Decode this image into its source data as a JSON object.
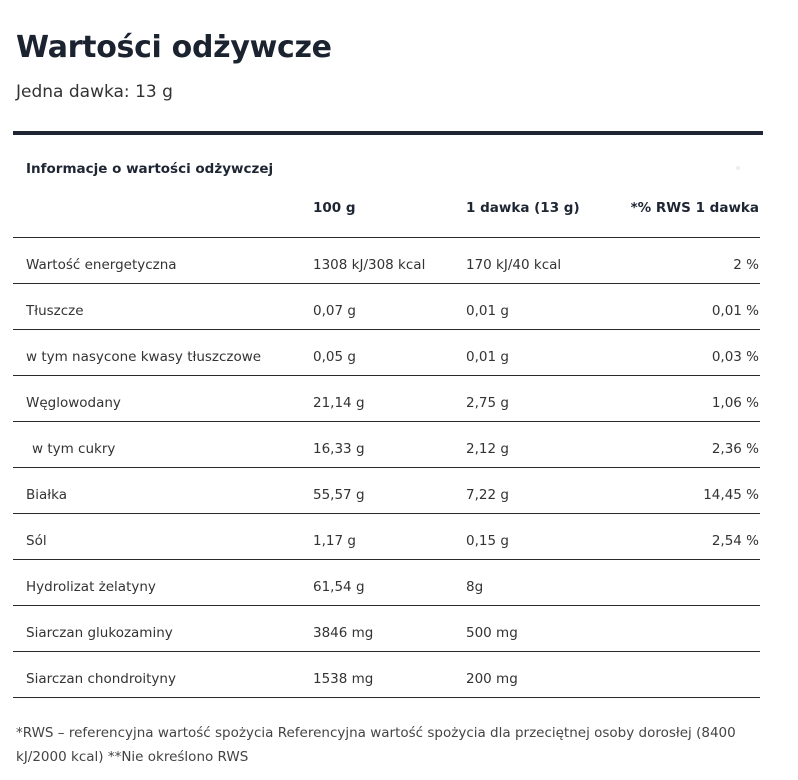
{
  "heading": {
    "title": "Wartości odżywcze",
    "serving": "Jedna dawka: 13 g"
  },
  "table": {
    "section_label": "Informacje o wartości odżywczej",
    "columns": [
      "",
      "100 g",
      "1 dawka (13 g)",
      "*% RWS 1 dawka"
    ],
    "rows": [
      {
        "name": "Wartość energetyczna",
        "per100": "1308 kJ/308 kcal",
        "perServing": "170 kJ/40 kcal",
        "rws": "2 %",
        "indent": false
      },
      {
        "name": "Tłuszcze",
        "per100": "0,07 g",
        "perServing": "0,01 g",
        "rws": "0,01 %",
        "indent": false
      },
      {
        "name": "w tym nasycone kwasy tłuszczowe",
        "per100": "0,05 g",
        "perServing": "0,01 g",
        "rws": "0,03 %",
        "indent": false
      },
      {
        "name": "Węglowodany",
        "per100": "21,14 g",
        "perServing": "2,75 g",
        "rws": "1,06 %",
        "indent": false
      },
      {
        "name": "w tym cukry",
        "per100": "16,33 g",
        "perServing": "2,12 g",
        "rws": "2,36 %",
        "indent": true
      },
      {
        "name": "Białka",
        "per100": "55,57 g",
        "perServing": "7,22 g",
        "rws": "14,45 %",
        "indent": false
      },
      {
        "name": "Sól",
        "per100": "1,17 g",
        "perServing": "0,15 g",
        "rws": "2,54 %",
        "indent": false
      },
      {
        "name": "Hydrolizat żelatyny",
        "per100": "61,54 g",
        "perServing": "8g",
        "rws": "",
        "indent": false
      },
      {
        "name": "Siarczan glukozaminy",
        "per100": "3846 mg",
        "perServing": "500 mg",
        "rws": "",
        "indent": false
      },
      {
        "name": "Siarczan chondroityny",
        "per100": "1538 mg",
        "perServing": "200 mg",
        "rws": "",
        "indent": false
      }
    ]
  },
  "footnote": "*RWS – referencyjna wartość spożycia Referencyjna wartość spożycia dla przeciętnej osoby dorosłej (8400 kJ/2000 kcal) **Nie określono RWS",
  "colors": {
    "dark": "#1f2633",
    "text": "#333333"
  }
}
